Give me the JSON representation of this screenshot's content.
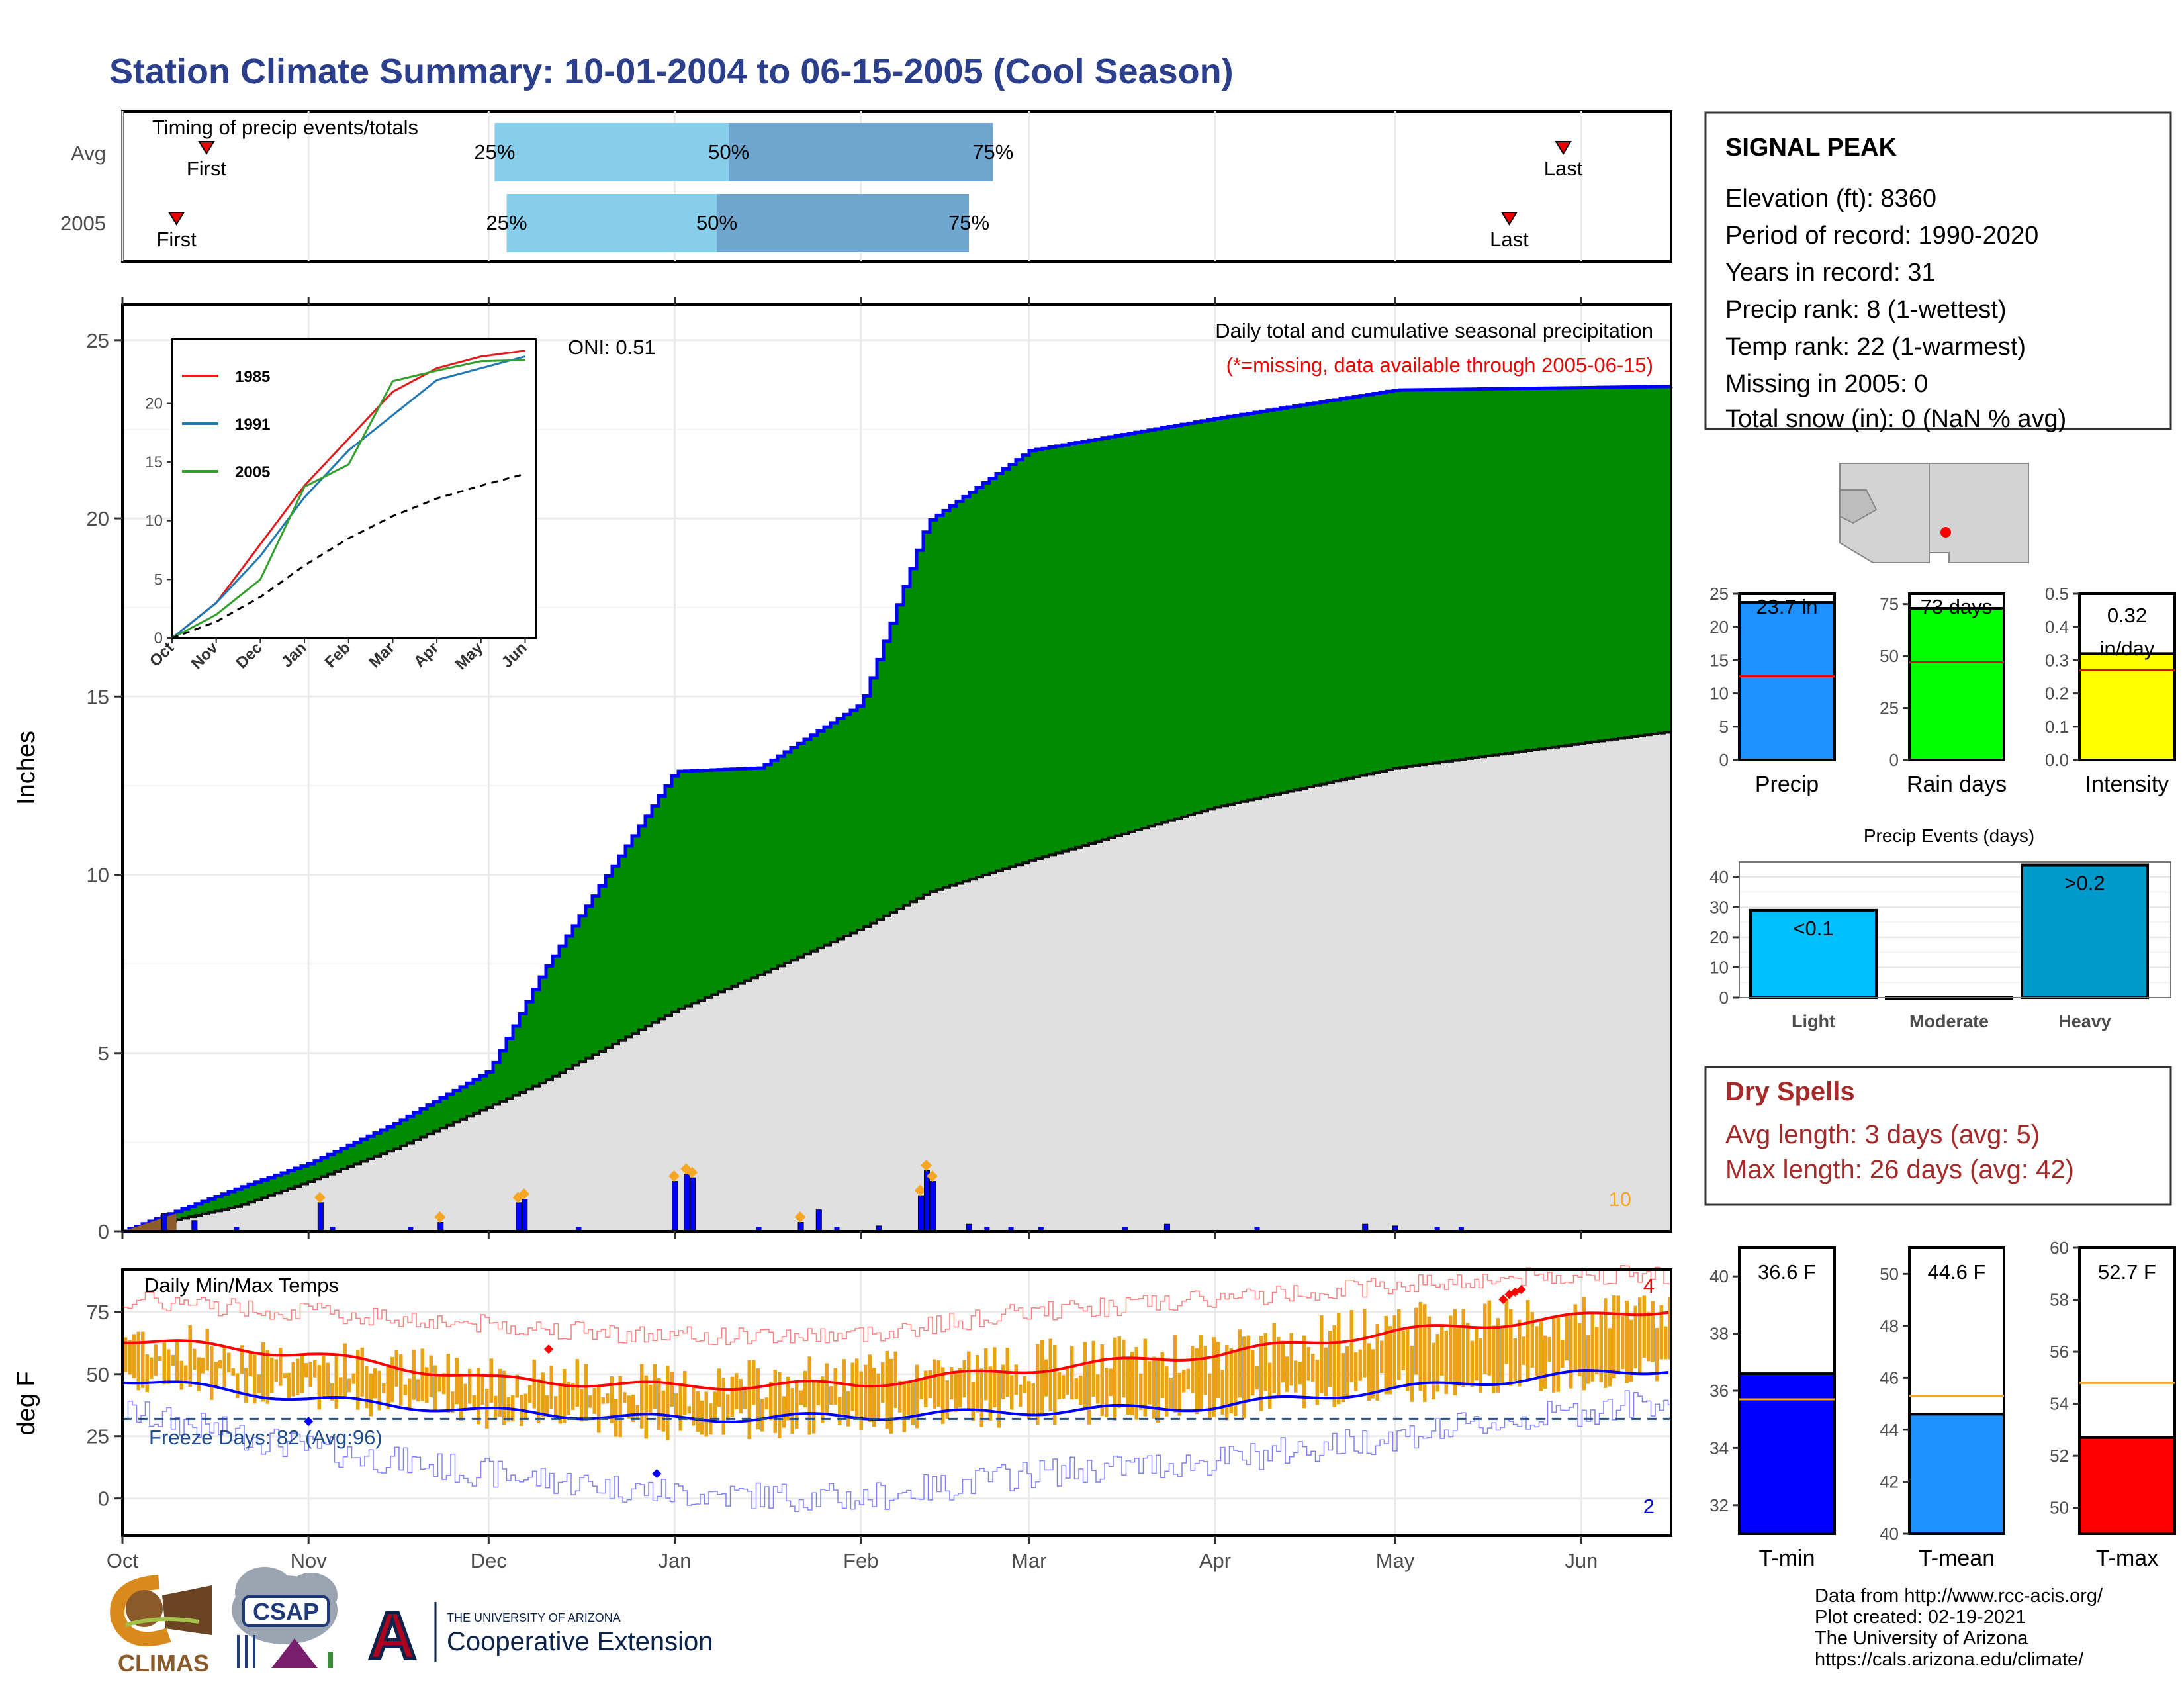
{
  "title": "Station Climate Summary: 10-01-2004 to 06-15-2005 (Cool Season)",
  "timing_panel": {
    "label": "Timing of precip events/totals",
    "rows": [
      {
        "name": "Avg",
        "first_label": "First",
        "last_label": "Last",
        "p25_label": "25%",
        "p50_label": "50%",
        "p75_label": "75%",
        "first": "2004-10-15",
        "p25": "2004-12-02",
        "p50": "2005-01-10",
        "p75": "2005-02-23",
        "last": "2005-05-29"
      },
      {
        "name": "2005",
        "first_label": "First",
        "last_label": "Last",
        "p25_label": "25%",
        "p50_label": "50%",
        "p75_label": "75%",
        "first": "2004-10-10",
        "p25": "2004-12-04",
        "p50": "2005-01-08",
        "p75": "2005-02-19",
        "last": "2005-05-20"
      }
    ]
  },
  "precip_panel": {
    "ylabel": "Inches",
    "caption": "Daily total and cumulative seasonal precipitation",
    "missing_note": "(*=missing, data available through 2005-06-15)",
    "oni": "ONI: 0.51",
    "count_label": "10",
    "y_ticks": [
      "0",
      "5",
      "10",
      "15",
      "20",
      "25"
    ]
  },
  "inset": {
    "legend": [
      {
        "name": "1985",
        "color": "#e31a1c"
      },
      {
        "name": "1991",
        "color": "#1f78b4"
      },
      {
        "name": "2005",
        "color": "#33a02c"
      }
    ],
    "y_ticks": [
      "0",
      "5",
      "10",
      "15",
      "20"
    ],
    "x_ticks": [
      "Oct",
      "Nov",
      "Dec",
      "Jan",
      "Feb",
      "Mar",
      "Apr",
      "May",
      "Jun"
    ]
  },
  "temp_panel": {
    "ylabel": "deg F",
    "label": "Daily Min/Max Temps",
    "freeze_label": "Freeze Days: 82 (Avg:96)",
    "max_count": "4",
    "min_count": "2",
    "y_ticks": [
      "0",
      "25",
      "50",
      "75"
    ],
    "x_ticks": [
      "Oct",
      "Nov",
      "Dec",
      "Jan",
      "Feb",
      "Mar",
      "Apr",
      "May",
      "Jun"
    ]
  },
  "station": {
    "name": "SIGNAL PEAK",
    "lines": [
      "Elevation (ft): 8360",
      "Period of record: 1990-2020",
      "Years in record: 31",
      "Precip rank: 8 (1-wettest)",
      "Temp rank: 22 (1-warmest)",
      "Missing in 2005: 0",
      "Total snow (in): 0 (NaN % avg)"
    ]
  },
  "mini_bars": [
    {
      "label": "Precip",
      "value_label": "23.7 in",
      "value": 23.7,
      "avg": 12.6,
      "ylim": [
        0,
        25
      ],
      "ticks": [
        "0",
        "5",
        "10",
        "15",
        "20",
        "25"
      ],
      "color": "#1e90ff"
    },
    {
      "label": "Rain days",
      "value_label": "73 days",
      "value": 73,
      "avg": 47,
      "ylim": [
        0,
        80
      ],
      "ticks": [
        "0",
        "25",
        "50",
        "75"
      ],
      "color": "#00ff00"
    },
    {
      "label": "Intensity",
      "value_label": "0.32 in/day",
      "value": 0.32,
      "avg": 0.27,
      "ylim": [
        0,
        0.5
      ],
      "ticks": [
        "0.0",
        "0.1",
        "0.2",
        "0.3",
        "0.4",
        "0.5"
      ],
      "color": "#ffff00"
    }
  ],
  "precip_events": {
    "title": "Precip Events (days)",
    "categories": [
      "Light",
      "Moderate",
      "Heavy"
    ],
    "bar_labels": [
      "<0.1",
      "",
      ">0.2"
    ],
    "values": [
      29,
      0,
      44
    ],
    "colors": [
      "#00bfff",
      "#0099cc",
      "#0099cc"
    ],
    "ylim": [
      0,
      45
    ],
    "ticks": [
      "0",
      "10",
      "20",
      "30",
      "40"
    ]
  },
  "dry_spells": {
    "title": "Dry Spells",
    "avg_line": "Avg length: 3 days (avg: 5)",
    "max_line": "Max length: 26 days (avg: 42)"
  },
  "temp_bars": [
    {
      "label": "T-min",
      "value_label": "36.6 F",
      "value": 36.6,
      "avg": 35.7,
      "ylim": [
        31,
        41
      ],
      "ticks": [
        "32",
        "34",
        "36",
        "38",
        "40"
      ],
      "color": "#0000ff"
    },
    {
      "label": "T-mean",
      "value_label": "44.6 F",
      "value": 44.6,
      "avg": 45.3,
      "ylim": [
        40,
        51
      ],
      "ticks": [
        "40",
        "42",
        "44",
        "46",
        "48",
        "50"
      ],
      "color": "#1e90ff"
    },
    {
      "label": "T-max",
      "value_label": "52.7 F",
      "value": 52.7,
      "avg": 54.8,
      "ylim": [
        49,
        60
      ],
      "ticks": [
        "50",
        "52",
        "54",
        "56",
        "58",
        "60"
      ],
      "color": "#ff0000"
    }
  ],
  "logos": {
    "climas": "CLIMAS",
    "csap": "CSAP",
    "ua_line1": "THE UNIVERSITY OF ARIZONA",
    "ua_line2": "Cooperative Extension",
    "ua_letter": "A"
  },
  "footer": [
    "Data from http://www.rcc-acis.org/",
    "Plot created: 02-19-2021",
    "The University of Arizona",
    "https://cals.arizona.edu/climate/"
  ],
  "chart_data": [
    {
      "type": "area",
      "title": "Daily total and cumulative seasonal precipitation",
      "ylabel": "Inches",
      "ylim": [
        0,
        26
      ],
      "x": [
        "2004-10-01",
        "2004-10-20",
        "2004-11-01",
        "2004-11-15",
        "2004-12-01",
        "2004-12-10",
        "2005-01-01",
        "2005-01-15",
        "2005-02-01",
        "2005-02-12",
        "2005-03-01",
        "2005-04-01",
        "2005-05-01",
        "2005-06-15"
      ],
      "series": [
        {
          "name": "2005 cumulative",
          "values": [
            0,
            1.2,
            1.9,
            3.0,
            4.5,
            7.3,
            12.9,
            13.0,
            14.8,
            19.9,
            21.9,
            22.8,
            23.6,
            23.7
          ]
        },
        {
          "name": "Avg cumulative",
          "values": [
            0,
            0.7,
            1.4,
            2.3,
            3.5,
            4.2,
            6.2,
            7.2,
            8.5,
            9.5,
            10.4,
            11.9,
            13.0,
            14.0
          ]
        }
      ],
      "daily_events": [
        {
          "date": "2004-10-08",
          "value": 0.5
        },
        {
          "date": "2004-10-13",
          "value": 0.3
        },
        {
          "date": "2004-11-03",
          "value": 0.8
        },
        {
          "date": "2004-11-23",
          "value": 0.25
        },
        {
          "date": "2004-12-06",
          "value": 0.8
        },
        {
          "date": "2004-12-07",
          "value": 0.9
        },
        {
          "date": "2005-01-01",
          "value": 1.4
        },
        {
          "date": "2005-01-03",
          "value": 1.6
        },
        {
          "date": "2005-01-04",
          "value": 1.5
        },
        {
          "date": "2005-01-22",
          "value": 0.25
        },
        {
          "date": "2005-01-25",
          "value": 0.6
        },
        {
          "date": "2005-02-04",
          "value": 0.15
        },
        {
          "date": "2005-02-11",
          "value": 1.0
        },
        {
          "date": "2005-02-12",
          "value": 1.7
        },
        {
          "date": "2005-02-13",
          "value": 1.4
        },
        {
          "date": "2005-02-19",
          "value": 0.2
        },
        {
          "date": "2005-03-24",
          "value": 0.2
        },
        {
          "date": "2005-04-26",
          "value": 0.2
        },
        {
          "date": "2005-05-01",
          "value": 0.15
        }
      ]
    },
    {
      "type": "line",
      "title": "",
      "xlabel": "",
      "ylabel": "",
      "ylim": [
        0,
        24
      ],
      "x": [
        "Oct",
        "Nov",
        "Dec",
        "Jan",
        "Feb",
        "Mar",
        "Apr",
        "May",
        "Jun"
      ],
      "series": [
        {
          "name": "1985",
          "values": [
            0,
            3,
            8,
            13,
            17,
            21,
            23,
            24,
            24.5
          ]
        },
        {
          "name": "1991",
          "values": [
            0,
            3,
            7,
            12,
            16,
            19,
            22,
            23,
            24
          ]
        },
        {
          "name": "2005",
          "values": [
            0,
            2,
            5,
            12.9,
            14.8,
            21.9,
            22.8,
            23.6,
            23.7
          ]
        },
        {
          "name": "Average",
          "values": [
            0,
            1.4,
            3.5,
            6.2,
            8.5,
            10.4,
            11.9,
            13,
            14
          ]
        }
      ]
    },
    {
      "type": "line",
      "title": "Daily Min/Max Temps",
      "ylabel": "deg F",
      "ylim": [
        -15,
        92
      ],
      "x": [
        "2004-10-01",
        "2004-11-01",
        "2004-12-01",
        "2005-01-01",
        "2005-02-01",
        "2005-03-01",
        "2005-04-01",
        "2005-05-01",
        "2005-06-01",
        "2005-06-15"
      ],
      "series": [
        {
          "name": "Avg max",
          "values": [
            64,
            58,
            48,
            45,
            46,
            52,
            58,
            67,
            73,
            76
          ]
        },
        {
          "name": "Avg min",
          "values": [
            48,
            40,
            35,
            32,
            33,
            35,
            37,
            44,
            50,
            52
          ]
        },
        {
          "name": "Record max",
          "values": [
            80,
            75,
            70,
            65,
            66,
            75,
            80,
            86,
            90,
            90
          ]
        },
        {
          "name": "Record min",
          "values": [
            35,
            20,
            10,
            2,
            0,
            10,
            15,
            25,
            35,
            40
          ]
        },
        {
          "name": "2005 max",
          "values": [
            65,
            55,
            50,
            45,
            50,
            55,
            58,
            70,
            72,
            75
          ]
        },
        {
          "name": "2005 min",
          "values": [
            50,
            42,
            35,
            30,
            32,
            36,
            38,
            45,
            50,
            52
          ]
        }
      ],
      "freeze_threshold": 32
    }
  ]
}
